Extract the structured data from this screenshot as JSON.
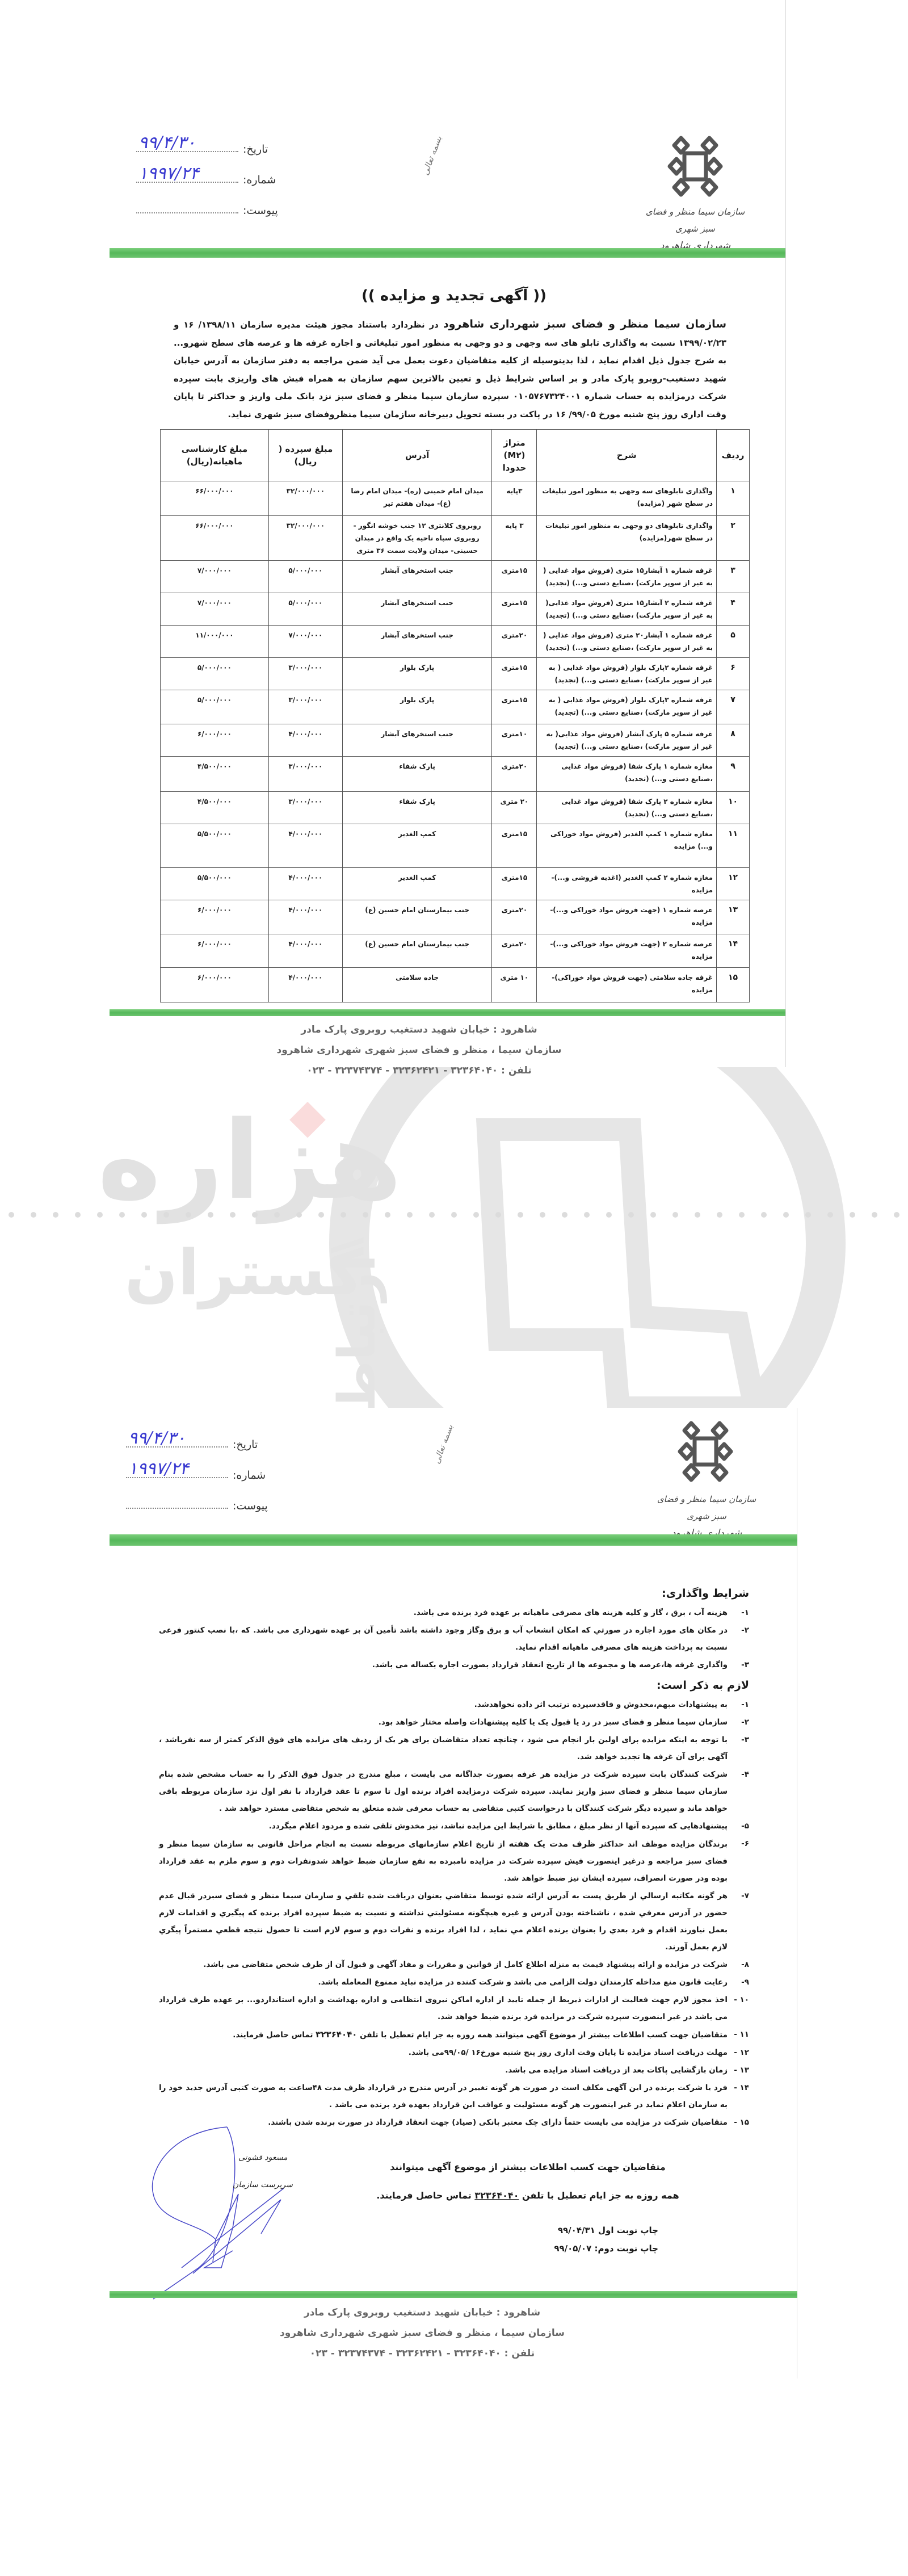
{
  "letterhead": {
    "org_line1": "سازمان سیما منظر و فضای سبز شهری",
    "org_line2": "شهرداری شاهرود",
    "bismillah": "بسمه تعالی",
    "date_label": "تاریخ:",
    "date_value": "۹۹/۴/۳۰",
    "number_label": "شماره:",
    "number_value": "۱۹۹۷/۲۴",
    "attachment_label": "پیوست:",
    "brand_green": "#5cb85c",
    "logo_icon": "knot-emblem-icon"
  },
  "page1": {
    "title": "(( آگهی تجدید و مزایده ))",
    "intro_lead": "سازمان سیما منظر و فضای سبز  شهرداری شاهرود",
    "intro_text": " در نظردارد باستناد مجوز هیئت مدیره سازمان ۱۳۹۸/۱۱/ ۱۶ و ۱۳۹۹/۰۲/۲۳ نسبت به واگذاری تابلو های سه وجهی و دو وجهی به منظور امور تبلیغاتی و اجاره غرفه ها و عرصه های سطح شهرو... به شرح جدول ذیل اقدام نماید ، لذا بدینوسیله از کلیه متقاضیان دعوت بعمل می آید ضمن مراجعه به دفتر سازمان به آدرس خیابان شهید دستغیب-روبرو پارک مادر و بر اساس شرایط ذیل و تعیین بالاترین سهم سازمان به همراه فیش های واریزی بابت سپرده شرکت درمزایده به حساب شماره ۰۱۰۵۷۶۷۳۲۴۰۰۱ سپرده سازمان سیما منظر و فضای سبز نزد بانک ملی واریز و حداکثر تا پایان وقت اداری روز پنج شنبه مورخ ۹۹/۰۵/ ۱۶ در پاکت در بسته تحویل دبیرخانه سازمان سیما منظروفضای سبز شهری نماید.",
    "table": {
      "columns": [
        "ردیف",
        "شرح",
        "متراژ (M۲) حدودا",
        "آدرس",
        "مبلغ سپرده ( ریال)",
        "مبلغ کارشناسی ماهیانه(ریال)"
      ],
      "rows": [
        {
          "row": "۱",
          "desc": "واگذاری تابلوهای سه وجهی به منظور امور تبلیغات در سطح شهر (مزایده)",
          "area": "۳پایه",
          "address": "میدان امام خمینی (ره)- میدان امام رضا (ع)- میدان هفتم تیر",
          "deposit": "۳۲/۰۰۰/۰۰۰",
          "monthly": "۶۶/۰۰۰/۰۰۰"
        },
        {
          "row": "۲",
          "desc": "واگذاری تابلوهای دو وجهی به منظور امور تبلیغات در سطح شهر(مزایده)",
          "area": "۳ پایه",
          "address": "روبروی کلانتری ۱۲ جنب خوشه انگور - روبروی سپاه ناحیه یک واقع در میدان حسینی- میدان ولایت سمت ۳۶ متری",
          "deposit": "۳۲/۰۰۰/۰۰۰",
          "monthly": "۶۶/۰۰۰/۰۰۰"
        },
        {
          "row": "۳",
          "desc": "غرفه شماره ۱ آبشار۱۵ متری (فروش مواد غذایی ( به غیر از سوپر مارکت) ،صنایع دستی و...) (تجدید)",
          "area": "۱۵متری",
          "address": "جنب استخرهای آبشار",
          "deposit": "۵/۰۰۰/۰۰۰",
          "monthly": "۷/۰۰۰/۰۰۰"
        },
        {
          "row": "۴",
          "desc": "غرفه شماره ۲ آبشار۱۵ متری (فروش مواد غذایی( به غیر از سوپر مارکت) ،صنایع دستی و...) (تجدید)",
          "area": "۱۵متری",
          "address": "جنب استخرهای آبشار",
          "deposit": "۵/۰۰۰/۰۰۰",
          "monthly": "۷/۰۰۰/۰۰۰"
        },
        {
          "row": "۵",
          "desc": "غرفه شماره ۱ آبشار۲۰ متری (فروش مواد غذایی ( به غیر از سوپر مارکت) ،صنایع دستی و...) (تجدید)",
          "area": "۲۰متری",
          "address": "جنب استخرهای آبشار",
          "deposit": "۷/۰۰۰/۰۰۰",
          "monthly": "۱۱/۰۰۰/۰۰۰"
        },
        {
          "row": "۶",
          "desc": "غرفه شماره ۲پارک بلوار (فروش مواد غذایی ( به غیر از سوپر مارکت) ،صنایع دستی و...) (تجدید)",
          "area": "۱۵متری",
          "address": "پارک بلوار",
          "deposit": "۳/۰۰۰/۰۰۰",
          "monthly": "۵/۰۰۰/۰۰۰"
        },
        {
          "row": "۷",
          "desc": "غرفه شماره ۳پارک بلوار (فروش مواد غذایی ( به غیر از سوپر مارکت) ،صنایع دستی و...) (تجدید)",
          "area": "۱۵متری",
          "address": "پارک بلوار",
          "deposit": "۳/۰۰۰/۰۰۰",
          "monthly": "۵/۰۰۰/۰۰۰"
        },
        {
          "row": "۸",
          "desc": "غرفه شماره ۵ پارک آبشار (فروش مواد غذایی( به غیر از سوپر مارکت) ،صنایع دستی و...) (تجدید)",
          "area": "۱۰متری",
          "address": "جنب استخرهای آبشار",
          "deposit": "۴/۰۰۰/۰۰۰",
          "monthly": "۶/۰۰۰/۰۰۰"
        },
        {
          "row": "۹",
          "desc": "مغازه شماره ۱ پارک شفا (فروش مواد غذایی ،صنایع دستی و...) (تجدید)",
          "area": "۲۰متری",
          "address": "پارک شفاء",
          "deposit": "۳/۰۰۰/۰۰۰",
          "monthly": "۴/۵۰۰/۰۰۰"
        },
        {
          "row": "۱۰",
          "desc": "مغازه شماره ۲ پارک شفا (فروش مواد غذایی ،صنایع دستی و...) (تجدید)",
          "area": "۲۰ متری",
          "address": "پارک شفاء",
          "deposit": "۳/۰۰۰/۰۰۰",
          "monthly": "۴/۵۰۰/۰۰۰"
        },
        {
          "row": "۱۱",
          "desc": "مغازه شماره ۱ کمپ الغدیر (فروش مواد خوراکی و...) مزایده",
          "area": "۱۵متری",
          "address": "کمپ الغدیر",
          "deposit": "۴/۰۰۰/۰۰۰",
          "monthly": "۵/۵۰۰/۰۰۰"
        },
        {
          "row": "۱۲",
          "desc": "مغازه شماره ۲ کمپ الغدیر (اغذیه فروشی و...)- مزایده",
          "area": "۱۵متری",
          "address": "کمپ الغدیر",
          "deposit": "۴/۰۰۰/۰۰۰",
          "monthly": "۵/۵۰۰/۰۰۰"
        },
        {
          "row": "۱۳",
          "desc": "عرصه شماره ۱ (جهت فروش مواد خوراکی و...)- مزایده",
          "area": "۲۰متری",
          "address": "جنب بیمارستان امام حسین (ع)",
          "deposit": "۴/۰۰۰/۰۰۰",
          "monthly": "۶/۰۰۰/۰۰۰"
        },
        {
          "row": "۱۴",
          "desc": "عرصه شماره ۲ (جهت فروش مواد خوراکی و...)-مزایده",
          "area": "۲۰متری",
          "address": "جنب بیمارستان امام حسین (ع)",
          "deposit": "۴/۰۰۰/۰۰۰",
          "monthly": "۶/۰۰۰/۰۰۰"
        },
        {
          "row": "۱۵",
          "desc": "غرفه جاده سلامتی (جهت فروش مواد خوراکی)-مزایده",
          "area": "۱۰ متری",
          "address": "جاده سلامتی",
          "deposit": "۴/۰۰۰/۰۰۰",
          "monthly": "۶/۰۰۰/۰۰۰"
        }
      ]
    }
  },
  "footer": {
    "address": "شاهرود : خیابان شهید دستغیب روبروی پارک مادر",
    "org": "سازمان سیما ، منظر و فضای سبز شهری شهرداری شاهرود",
    "phone": "تلفن : ۳۲۳۶۴۰۴۰ - ۳۲۳۶۲۴۲۱ - ۳۲۳۷۴۳۷۴ - ۰۲۳"
  },
  "watermark": {
    "line1": "هزاره",
    "line2": "گستران",
    "line3": "ارتباط"
  },
  "page2": {
    "section1_title": "شرایط واگذاری:",
    "section1_items": [
      {
        "n": "۱-",
        "text": "هزینه آب ، برق ، گاز و کلیه هزینه های  مصرفی ماهیانه بر عهده فرد برنده می باشد."
      },
      {
        "n": "۲-",
        "text": "در مکان های مورد اجاره در صورتي که امکان انشعاب آب و برق وگاز وجود داشته باشد تأمین آن بر عهده شهرداری می باشد. که ،با نصب کنتور فرعی نسبت به پرداخت هزینه های مصرفی ماهیانه اقدام نماید."
      },
      {
        "n": "۳-",
        "text": "واگذاری غرفه ها،عرصه ها و مجموعه ها از تاریخ انعقاد قرارداد بصورت اجاره یکساله می باشد."
      }
    ],
    "section2_title": "لازم به ذکر است:",
    "section2_items": [
      {
        "n": "۱-",
        "text": "به پیشنهادات مبهم،مخدوش و فاقدسپرده ترتیب اثر داده نخواهدشد."
      },
      {
        "n": "۲-",
        "text": "سازمان سیما منظر و فضای سبز در رد یا قبول یک یا کلیه پیشنهادات واصله مختار خواهد بود."
      },
      {
        "n": "۳-",
        "text": "با توجه به اینکه مزایده برای اولین بار انجام می شود ، چنانچه تعداد متقاضیان برای هر یک از ردیف های  مزایده های فوق الذکر کمتر از سه نفرباشد ، آگهی برای آن  غرفه ها تجدید خواهد شد."
      },
      {
        "n": "۴-",
        "text": "شرکت کنندگان بابت سپرده شرکت در مزایده  هر غرفه بصورت جداگانه می بایست ، مبلغ مندرج در جدول فوق الذکر  را به حساب مشخص شده بنام   سازمان سیما منظر و فضای سبز  واریز نمایند. سپرده شرکت درمزایده افراد برنده اول تا سوم تا عقد قرارداد با نفر اول نزد سازمان مربوطه باقی خواهد ماند و سپرده دیگر شرکت کنندگان با درخواست کتبی متقاضی به حساب معرفی شده متعلق به شخص متقاضی  مسترد خواهد شد ."
      },
      {
        "n": "۵-",
        "text": "پیشنهادهایی  که سپرده آنها از نظر مبلغ ، مطابق با شرایط این مزایده نباشد، نیز مخدوش تلقی شده و مردود اعلام میگردد."
      },
      {
        "n": "۶-",
        "text_before": "برندگان مزایده موظف اند حداکثر ",
        "text_bold": "ظرف مدت  یک هفته",
        "text": " از تاریخ اعلام سازمانهای مربوطه  نسبت به انجام مراحل قانونی  به سازمان سیما منظر و فضای سبز  مراجعه و درغیر اینصورت فیش سپرده شرکت در مزایده نامبرده به نفع سازمان ضبط خواهد شدونفرات دوم و سوم ملزم به عقد قرارداد بوده ودر صورت انصراف، سپرده ایشان  نیز ضبط خواهد شد."
      },
      {
        "n": "۷-",
        "text": "هر گونه مکاتبه ارسالي از طريق پست به آدرس ارائه شده توسط متقاضي بعنوان دريافت شده تلقي و  سازمان سیما منظر و فضای سبزدر قبال عدم حضور در آدرس معرفي شده  ، ناشناخته بودن آدرس و غیره هيچگونه مسئوليتي نداشته و نسبت به ضبط سپرده افراد برنده كه پيگيري و اقدامات لازم بعمل نياورند اقدام و فرد بعدي را بعنوان برنده اعلام مي نمايد ، لذا افراد برنده و نفرات دوم و سوم لازم است تا حصول نتيجه قطعي مستمراً پيگري لازم بعمل آورند."
      },
      {
        "n": "۸-",
        "text": "شرکت در مزایده و ارائه پیشنهاد قیمت به منزله اطلاع کامل از قوانین و مقررات و مفاد آگهی و قبول آن از طرف شخص متقاضی می باشد."
      },
      {
        "n": "۹-",
        "text": "رعایت قانون منع مداخله کارمندان دولت الزامی می باشد و شرکت کننده در مزایده نباید ممنوع المعامله باشد."
      },
      {
        "n": "۱۰ -",
        "text": "اخذ مجوز لازم جهت فعالیت از ادارات ذیربط از جمله  تایید از اداره اماکن نیروی انتظامی و اداره بهداشت و اداره استانداردو... بر عهده طرف قرارداد  می باشد در غیر اینصورت سپرده شرکت در مزایده فرد برنده ضبط خواهد شد."
      },
      {
        "n": "۱۱ -",
        "text_before": "متقاضیان جهت کسب اطلاعات بیشتر از موضوع آگهی میتوانند همه روزه به جز ایام تعطیل با تلفن ",
        "text_bold": "۳۲۳۶۴۰۴۰",
        "text": " تماس حاصل فرمایند."
      },
      {
        "n": "۱۲ -",
        "text": "مهلت دریافت اسناد مزایده تا پایان وقت اداری روز پنج شنبه مورخ۱۶ /۹۹/۰۵می باشد."
      },
      {
        "n": "۱۳ -",
        "text": "زمان بازگشایی پاکات بعد از دریافت اسناد مزایده می باشد."
      },
      {
        "n": "۱۴ -",
        "text": "فرد یا شرکت برنده در این آگهی مکلف است در صورت هر گونه تغییر در آدرس مندرج در قرارداد ظرف مدت ۴۸ساعت به صورت کتبی آدرس جدید خود را به سازمان اعلام نماید در غیر اینصورت هر  گونه مسئولیت و عواقب این قرارداد بعهده فرد برنده می باشد ."
      },
      {
        "n": "۱۵ -",
        "text": "متقاضیان شرکت در مزایده می بایست حتماً دارای چک معتبر بانکی (صیاد) جهت انعقاد قرارداد در صورت برنده شدن باشند."
      }
    ],
    "closing_line1": "متقاضیان جهت کسب اطلاعات بیشتر از موضوع آگهی میتوانند",
    "closing_line2_before": "همه روزه به جز ایام تعطیل با تلفن ",
    "closing_phone": "۳۲۳۶۴۰۴۰",
    "closing_line2_after": " تماس حاصل فرمایند.",
    "print_first_label": "چاپ نوبت اول",
    "print_first_date": "۹۹/۰۴/۳۱",
    "print_second_label": "چاپ نوبت دوم:",
    "print_second_date": "۹۹/۰۵/۰۷",
    "signer_name": "مسعود قشونی",
    "signer_title": "سرپرست سازمان"
  }
}
